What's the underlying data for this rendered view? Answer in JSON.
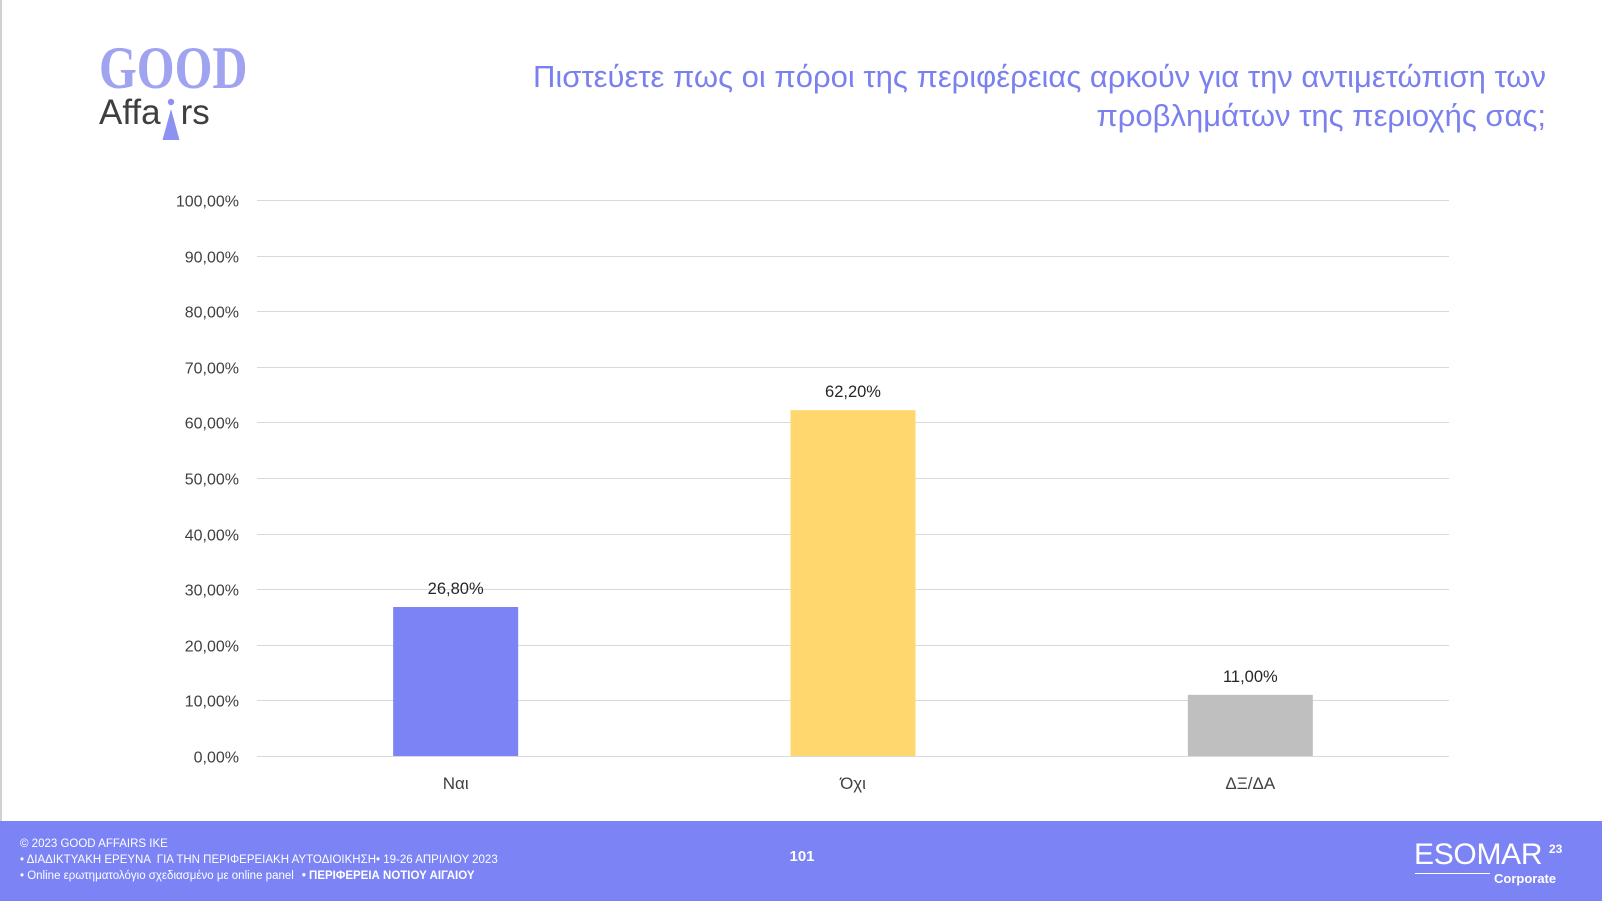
{
  "logo": {
    "line1": "GOOD",
    "line2": "Affairs"
  },
  "header": {
    "title_line1": "Πιστεύετε πως οι πόροι της περιφέρειας αρκούν για την αντιμετώπιση των",
    "title_line2": "προβλημάτων της περιοχής σας;"
  },
  "chart_data": {
    "type": "bar",
    "categories": [
      "Ναι",
      "Όχι",
      "ΔΞ/ΔΑ"
    ],
    "values": [
      26.8,
      62.2,
      11.0
    ],
    "data_labels": [
      "26,80%",
      "62,20%",
      "11,00%"
    ],
    "ylim": [
      0,
      100
    ],
    "yticks": [
      0,
      10,
      20,
      30,
      40,
      50,
      60,
      70,
      80,
      90,
      100
    ],
    "ytick_labels": [
      "0,00%",
      "10,00%",
      "20,00%",
      "30,00%",
      "40,00%",
      "50,00%",
      "60,00%",
      "70,00%",
      "80,00%",
      "90,00%",
      "100,00%"
    ],
    "bar_colors": [
      "#7b83f5",
      "#ffd76e",
      "#bfbfbf"
    ],
    "grid": true
  },
  "footer": {
    "copyright": "© 2023 GOOD AFFAIRS IKE",
    "survey_line": "• ΔΙΑΔΙΚΤΥΑΚΗ ΕΡΕΥΝΑ  ΓΙΑ ΤΗΝ ΠΕΡΙΦΕΡΕΙΑΚΗ ΑΥΤΟΔΙΟΙΚΗΣΗ• 19-26 ΑΠΡΙΛΙΟΥ 2023",
    "method_line": "• Online ερωτηματολόγιο σχεδιασμένο με online panel",
    "region": "• ΠΕΡΙΦΕΡΕΙΑ ΝΟΤΙΟΥ ΑΙΓΑΙΟΥ",
    "page_number": "101",
    "esomar": {
      "name": "ESOMAR",
      "superscript": "23",
      "tier": "Corporate"
    }
  },
  "colors": {
    "accent": "#7b83f5",
    "title": "#7a80ee",
    "logo": "#9fa3f0",
    "logo_text": "#3f3f3f"
  }
}
